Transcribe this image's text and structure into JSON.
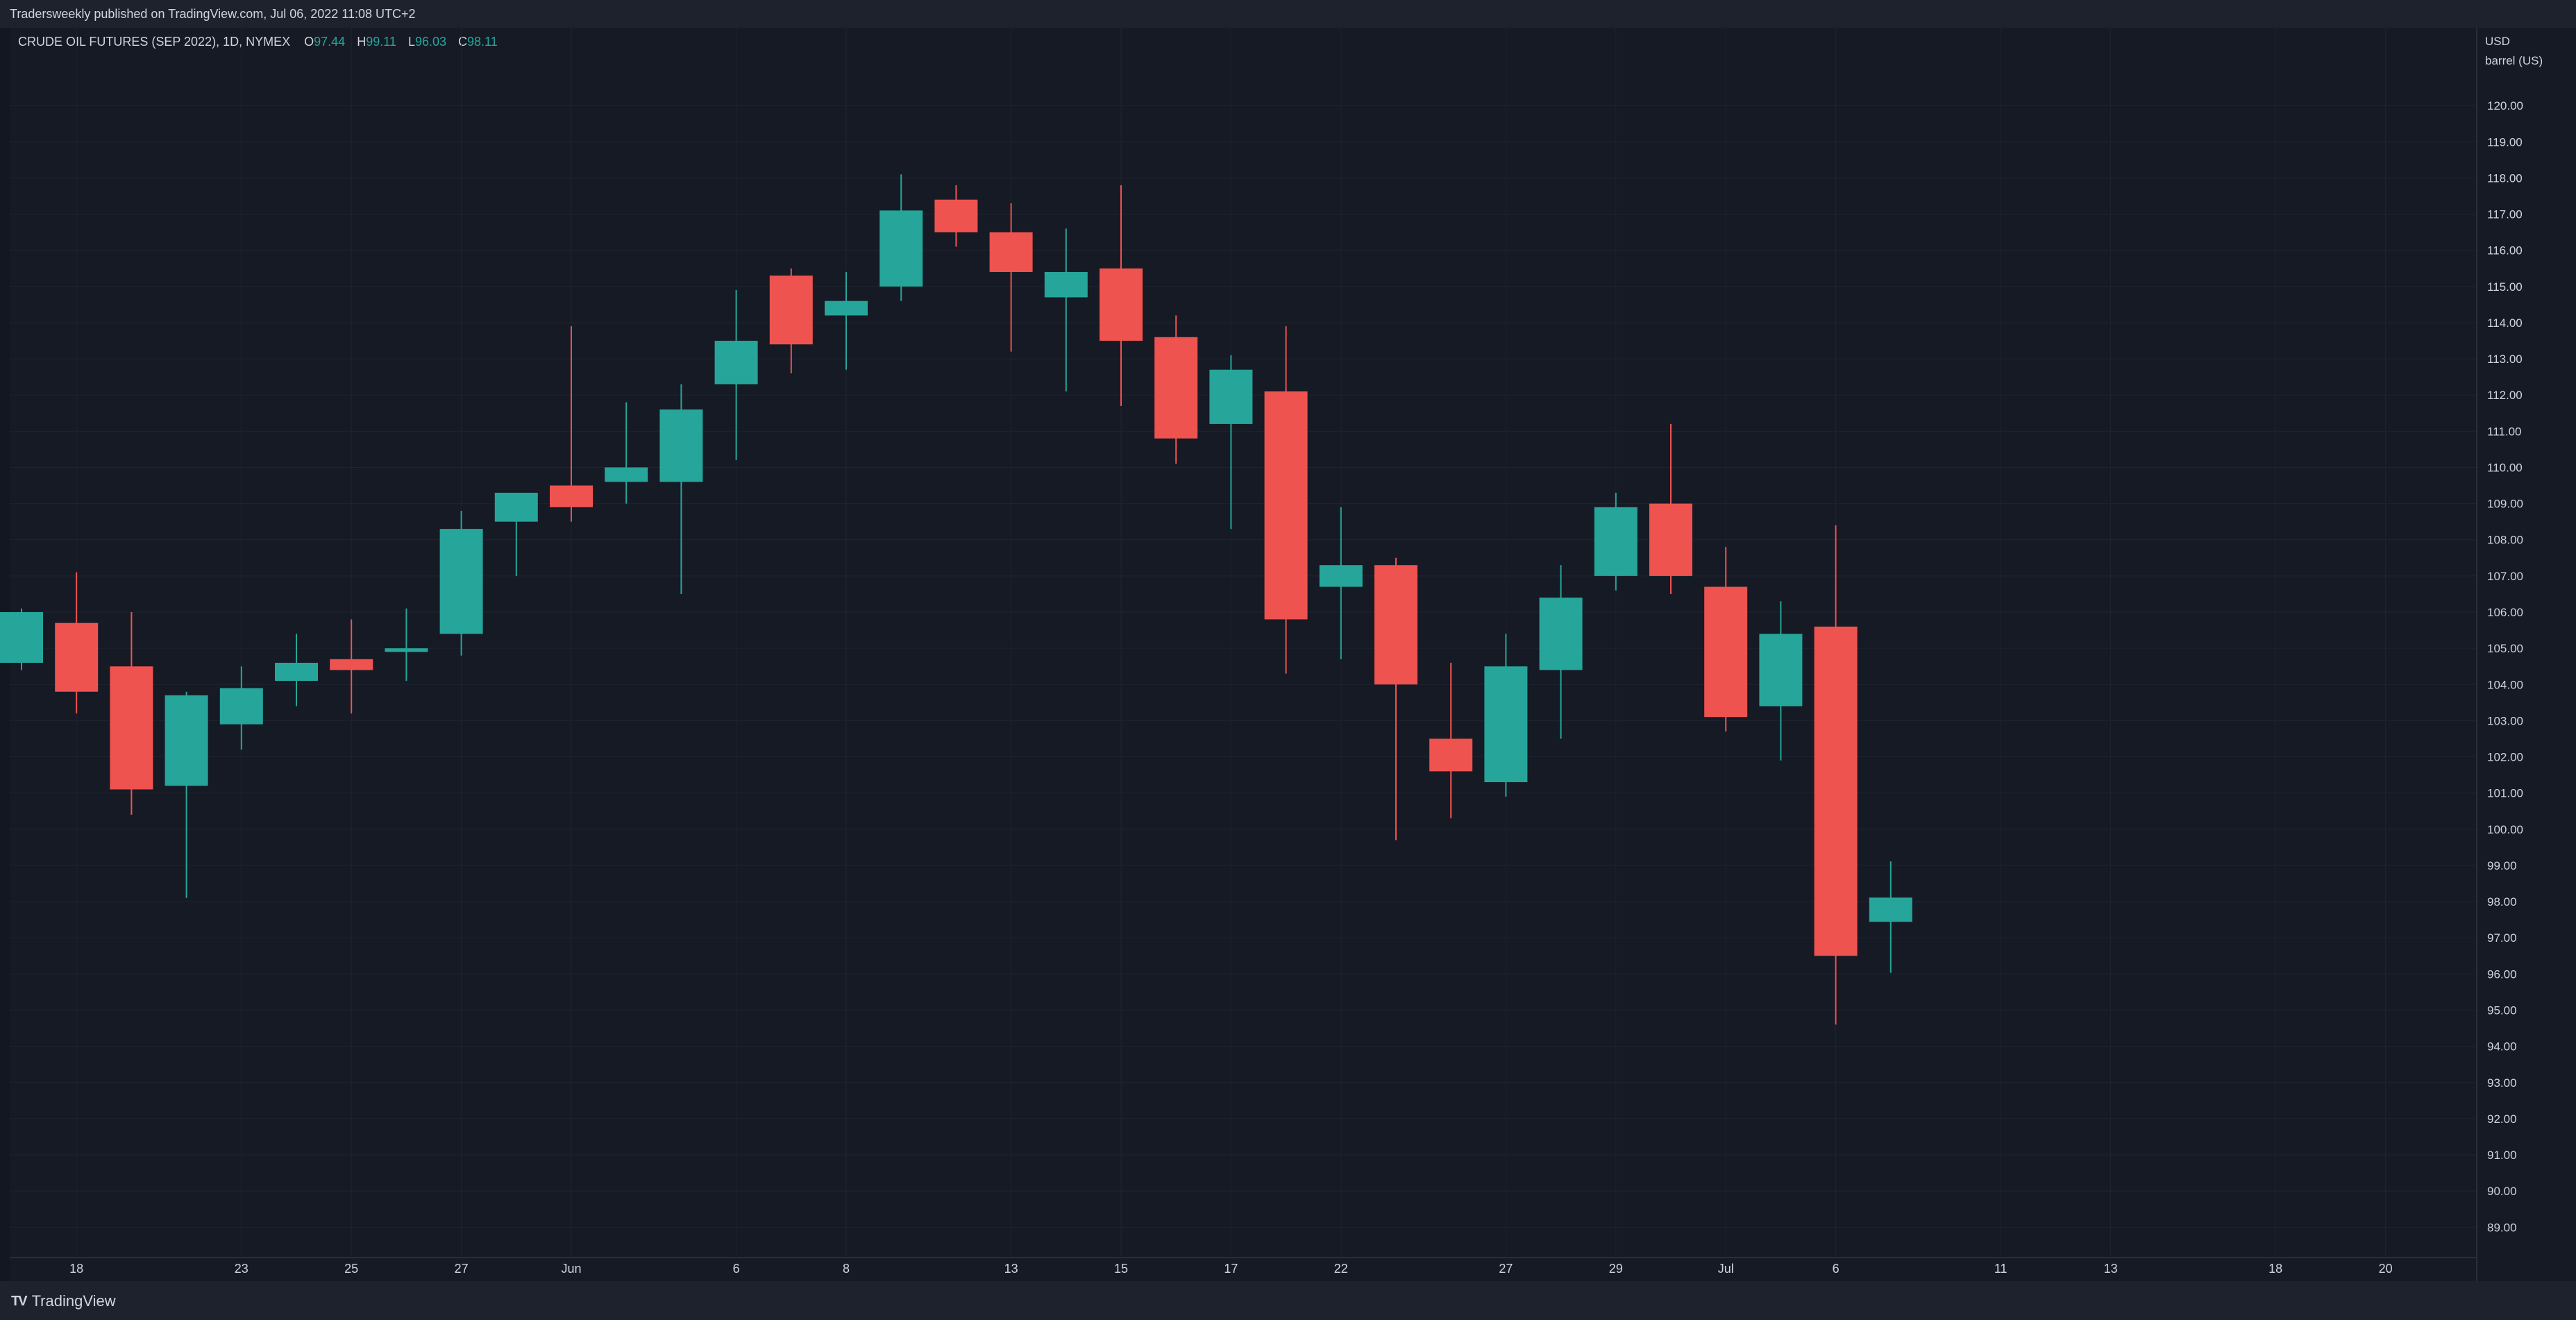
{
  "header": {
    "published_text": "Tradersweekly published on TradingView.com, Jul 06, 2022 11:08 UTC+2"
  },
  "legend": {
    "symbol": "CRUDE OIL FUTURES (SEP 2022), 1D, NYMEX",
    "o_label": "O",
    "o_value": "97.44",
    "h_label": "H",
    "h_value": "99.11",
    "l_label": "L",
    "l_value": "96.03",
    "c_label": "C",
    "c_value": "98.11"
  },
  "price_axis": {
    "currency": "USD",
    "unit": "barrel (US)"
  },
  "footer": {
    "brand": "TradingView",
    "logo": "TV"
  },
  "colors": {
    "up": "#26a69a",
    "down": "#ef5350",
    "background": "#161a25",
    "grid": "#1f2430",
    "text": "#d1d4dc"
  },
  "chart_data": {
    "type": "candlestick",
    "title": "CRUDE OIL FUTURES (SEP 2022), 1D, NYMEX",
    "ylabel": "USD barrel (US)",
    "ylim": [
      88.2,
      121.0
    ],
    "y_ticks": [
      "89.00",
      "90.00",
      "91.00",
      "92.00",
      "93.00",
      "94.00",
      "95.00",
      "96.00",
      "97.00",
      "98.00",
      "99.00",
      "100.00",
      "101.00",
      "102.00",
      "103.00",
      "104.00",
      "105.00",
      "106.00",
      "107.00",
      "108.00",
      "109.00",
      "110.00",
      "111.00",
      "112.00",
      "113.00",
      "114.00",
      "115.00",
      "116.00",
      "117.00",
      "118.00",
      "119.00",
      "120.00"
    ],
    "x_ticks": [
      {
        "i": 1,
        "label": "18"
      },
      {
        "i": 4,
        "label": "23"
      },
      {
        "i": 6,
        "label": "25"
      },
      {
        "i": 8,
        "label": "27"
      },
      {
        "i": 10,
        "label": "Jun"
      },
      {
        "i": 13,
        "label": "6"
      },
      {
        "i": 15,
        "label": "8"
      },
      {
        "i": 18,
        "label": "13"
      },
      {
        "i": 20,
        "label": "15"
      },
      {
        "i": 22,
        "label": "17"
      },
      {
        "i": 24,
        "label": "22"
      },
      {
        "i": 27,
        "label": "27"
      },
      {
        "i": 29,
        "label": "29"
      },
      {
        "i": 31,
        "label": "Jul"
      },
      {
        "i": 33,
        "label": "6"
      },
      {
        "i": 36,
        "label": "11"
      },
      {
        "i": 38,
        "label": "13"
      },
      {
        "i": 41,
        "label": "18"
      },
      {
        "i": 43,
        "label": "20"
      }
    ],
    "bars_visible": 46,
    "candles": [
      {
        "o": 104.6,
        "h": 106.1,
        "l": 104.4,
        "c": 106.0
      },
      {
        "o": 105.7,
        "h": 107.1,
        "l": 103.2,
        "c": 103.8
      },
      {
        "o": 104.5,
        "h": 106.0,
        "l": 100.4,
        "c": 101.1
      },
      {
        "o": 101.2,
        "h": 103.8,
        "l": 98.1,
        "c": 103.7
      },
      {
        "o": 102.9,
        "h": 104.5,
        "l": 102.2,
        "c": 103.9
      },
      {
        "o": 104.1,
        "h": 105.4,
        "l": 103.4,
        "c": 104.6
      },
      {
        "o": 104.7,
        "h": 105.8,
        "l": 103.2,
        "c": 104.4
      },
      {
        "o": 104.9,
        "h": 106.1,
        "l": 104.1,
        "c": 105.0
      },
      {
        "o": 105.4,
        "h": 108.8,
        "l": 104.8,
        "c": 108.3
      },
      {
        "o": 108.5,
        "h": 109.3,
        "l": 107.0,
        "c": 109.3
      },
      {
        "o": 109.5,
        "h": 113.9,
        "l": 108.5,
        "c": 108.9
      },
      {
        "o": 109.6,
        "h": 111.8,
        "l": 109.0,
        "c": 110.0
      },
      {
        "o": 109.6,
        "h": 112.3,
        "l": 106.5,
        "c": 111.6
      },
      {
        "o": 112.3,
        "h": 114.9,
        "l": 110.2,
        "c": 113.5
      },
      {
        "o": 115.3,
        "h": 115.5,
        "l": 112.6,
        "c": 113.4
      },
      {
        "o": 114.2,
        "h": 115.4,
        "l": 112.7,
        "c": 114.6
      },
      {
        "o": 115.0,
        "h": 118.1,
        "l": 114.6,
        "c": 117.1
      },
      {
        "o": 117.4,
        "h": 117.8,
        "l": 116.1,
        "c": 116.5
      },
      {
        "o": 116.5,
        "h": 117.3,
        "l": 113.2,
        "c": 115.4
      },
      {
        "o": 114.7,
        "h": 116.6,
        "l": 112.1,
        "c": 115.4
      },
      {
        "o": 115.5,
        "h": 117.8,
        "l": 111.7,
        "c": 113.5
      },
      {
        "o": 113.6,
        "h": 114.2,
        "l": 110.1,
        "c": 110.8
      },
      {
        "o": 111.2,
        "h": 113.1,
        "l": 108.3,
        "c": 112.7
      },
      {
        "o": 112.1,
        "h": 113.9,
        "l": 104.3,
        "c": 105.8
      },
      {
        "o": 106.7,
        "h": 108.9,
        "l": 104.7,
        "c": 107.3
      },
      {
        "o": 107.3,
        "h": 107.5,
        "l": 99.7,
        "c": 104.0
      },
      {
        "o": 102.5,
        "h": 104.6,
        "l": 100.3,
        "c": 101.6
      },
      {
        "o": 101.3,
        "h": 105.4,
        "l": 100.9,
        "c": 104.5
      },
      {
        "o": 104.4,
        "h": 107.3,
        "l": 102.5,
        "c": 106.4
      },
      {
        "o": 107.0,
        "h": 109.3,
        "l": 106.6,
        "c": 108.9
      },
      {
        "o": 109.0,
        "h": 111.2,
        "l": 106.5,
        "c": 107.0
      },
      {
        "o": 106.7,
        "h": 107.8,
        "l": 102.7,
        "c": 103.1
      },
      {
        "o": 103.4,
        "h": 106.3,
        "l": 101.9,
        "c": 105.4
      },
      {
        "o": 105.6,
        "h": 108.4,
        "l": 94.6,
        "c": 96.5
      },
      {
        "o": 97.44,
        "h": 99.11,
        "l": 96.03,
        "c": 98.11
      }
    ]
  }
}
